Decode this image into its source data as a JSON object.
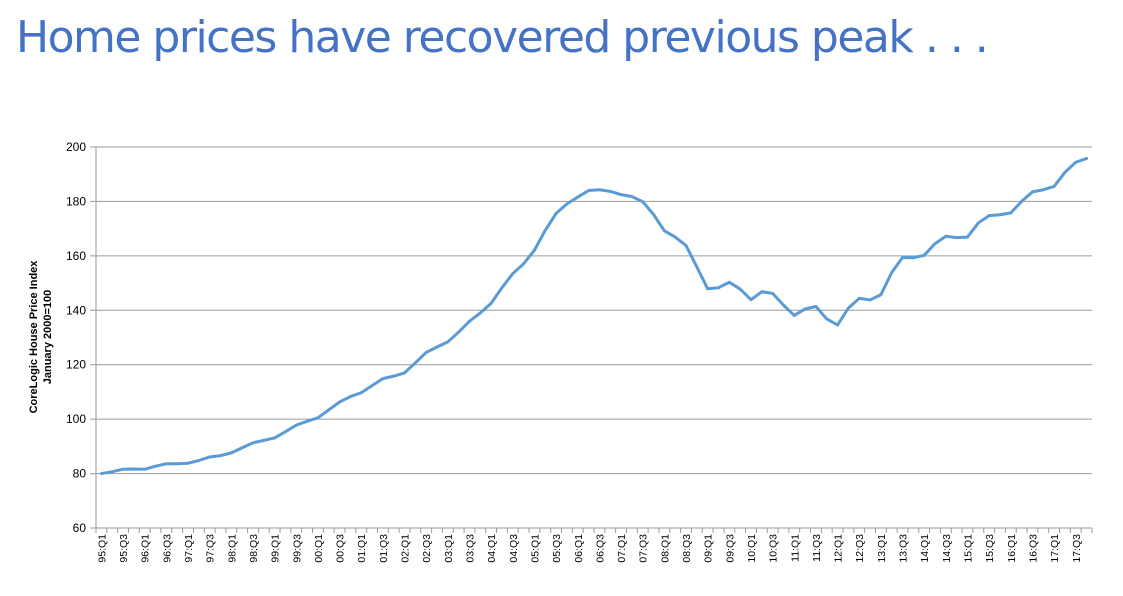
{
  "slide": {
    "title": "Home prices have recovered previous peak . . ."
  },
  "chart_data": {
    "type": "line",
    "ylabel_line1": "CoreLogic House Price Index",
    "ylabel_line2": "January  2000=100",
    "ylim": [
      60,
      200
    ],
    "yticks": [
      60,
      80,
      100,
      120,
      140,
      160,
      180,
      200
    ],
    "grid": "horizontal",
    "x_tick_labels": [
      "95:Q1",
      "95:Q3",
      "96:Q1",
      "96:Q3",
      "97:Q1",
      "97:Q3",
      "98:Q1",
      "98:Q3",
      "99:Q1",
      "99:Q3",
      "00:Q1",
      "00:Q3",
      "01:Q1",
      "01:Q3",
      "02:Q1",
      "02:Q3",
      "03:Q1",
      "03:Q3",
      "04:Q1",
      "04:Q3",
      "05:Q1",
      "05:Q3",
      "06:Q1",
      "06:Q3",
      "07:Q1",
      "07:Q3",
      "08:Q1",
      "08:Q3",
      "09:Q1",
      "09:Q3",
      "10:Q1",
      "10:Q3",
      "11:Q1",
      "11:Q3",
      "12:Q1",
      "12:Q3",
      "13:Q1",
      "13:Q3",
      "14:Q1",
      "14:Q3",
      "15:Q1",
      "15:Q3",
      "16:Q1",
      "16:Q3",
      "17:Q1",
      "17:Q3"
    ],
    "line_color": "#5b9bd5",
    "series": [
      {
        "x": [
          "95:Q1",
          "95:Q2",
          "95:Q3",
          "95:Q4",
          "96:Q1",
          "96:Q2",
          "96:Q3",
          "96:Q4",
          "97:Q1",
          "97:Q2",
          "97:Q3",
          "97:Q4",
          "98:Q1",
          "98:Q2",
          "98:Q3",
          "98:Q4",
          "99:Q1",
          "99:Q2",
          "99:Q3",
          "99:Q4",
          "00:Q1",
          "00:Q2",
          "00:Q3",
          "00:Q4",
          "01:Q1",
          "01:Q2",
          "01:Q3",
          "01:Q4",
          "02:Q1",
          "02:Q2",
          "02:Q3",
          "02:Q4",
          "03:Q1",
          "03:Q2",
          "03:Q3",
          "03:Q4",
          "04:Q1",
          "04:Q2",
          "04:Q3",
          "04:Q4",
          "05:Q1",
          "05:Q2",
          "05:Q3",
          "05:Q4",
          "06:Q1",
          "06:Q2",
          "06:Q3",
          "06:Q4",
          "07:Q1",
          "07:Q2",
          "07:Q3",
          "07:Q4",
          "08:Q1",
          "08:Q2",
          "08:Q3",
          "08:Q4",
          "09:Q1",
          "09:Q2",
          "09:Q3",
          "09:Q4",
          "10:Q1",
          "10:Q2",
          "10:Q3",
          "10:Q4",
          "11:Q1",
          "11:Q2",
          "11:Q3",
          "11:Q4",
          "12:Q1",
          "12:Q2",
          "12:Q3",
          "12:Q4",
          "13:Q1",
          "13:Q2",
          "13:Q3",
          "13:Q4",
          "14:Q1",
          "14:Q2",
          "14:Q3",
          "14:Q4",
          "15:Q1",
          "15:Q2",
          "15:Q3",
          "15:Q4",
          "16:Q1",
          "16:Q2",
          "16:Q3",
          "16:Q4",
          "17:Q1",
          "17:Q2",
          "17:Q3",
          "17:Q4"
        ],
        "values": [
          80.0,
          80.7,
          81.6,
          81.7,
          81.6,
          82.7,
          83.6,
          83.6,
          83.8,
          84.8,
          86.1,
          86.6,
          87.6,
          89.5,
          91.3,
          92.2,
          93.1,
          95.4,
          97.8,
          99.2,
          100.5,
          103.4,
          106.3,
          108.3,
          109.7,
          112.3,
          114.9,
          115.8,
          117.0,
          120.7,
          124.5,
          126.5,
          128.4,
          132.0,
          136.0,
          139.0,
          142.6,
          148.3,
          153.5,
          157.1,
          162.1,
          169.4,
          175.6,
          179.1,
          181.6,
          184.0,
          184.3,
          183.7,
          182.5,
          181.8,
          179.9,
          175.2,
          169.2,
          166.9,
          163.8,
          155.9,
          147.9,
          148.3,
          150.3,
          147.8,
          143.9,
          146.8,
          146.2,
          141.9,
          138.1,
          140.5,
          141.4,
          136.8,
          134.6,
          140.8,
          144.4,
          143.8,
          145.7,
          153.9,
          159.4,
          159.3,
          160.2,
          164.5,
          167.2,
          166.7,
          166.9,
          172.1,
          174.8,
          175.1,
          175.8,
          180.0,
          183.5,
          184.3,
          185.5,
          190.7,
          194.4,
          195.8
        ]
      }
    ]
  }
}
